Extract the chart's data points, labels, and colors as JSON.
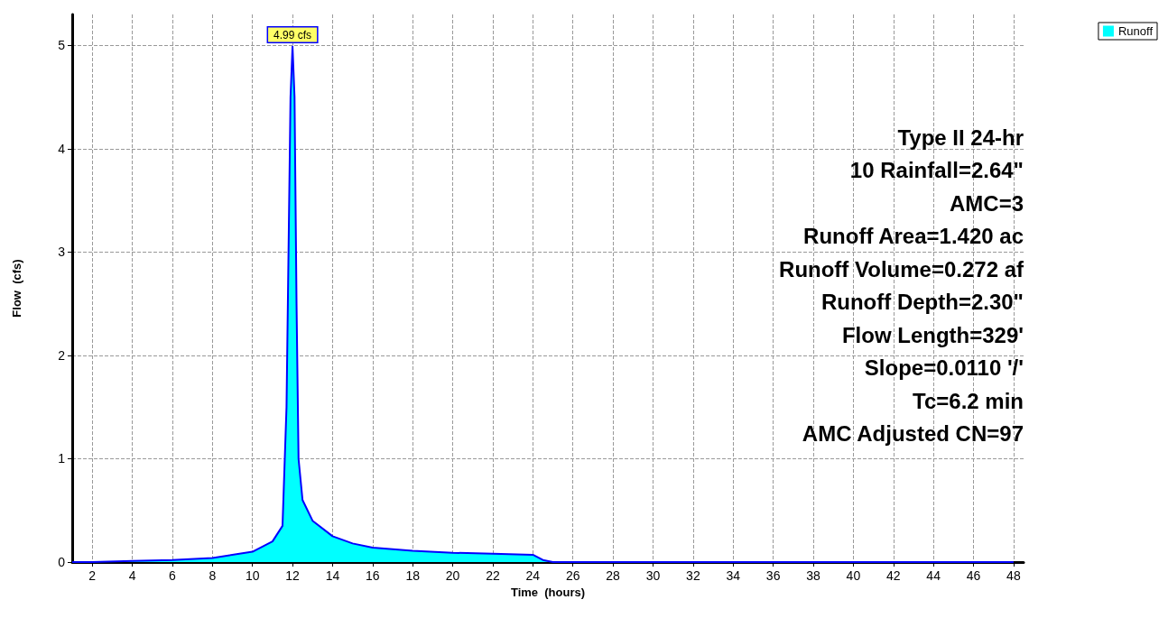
{
  "chart_data": {
    "type": "area",
    "xlabel": "Time  (hours)",
    "ylabel": "Flow  (cfs)",
    "series": [
      {
        "name": "Runoff",
        "color": "#00ffff",
        "x": [
          1,
          2,
          4,
          6,
          8,
          10,
          11,
          11.5,
          11.7,
          11.9,
          12,
          12.1,
          12.2,
          12.3,
          12.5,
          13,
          14,
          15,
          16,
          18,
          20,
          22,
          24,
          24.5,
          25,
          30,
          40,
          48
        ],
        "values": [
          0,
          0,
          0.01,
          0.02,
          0.04,
          0.1,
          0.2,
          0.35,
          1.5,
          4.5,
          4.99,
          4.5,
          2.5,
          1,
          0.6,
          0.4,
          0.25,
          0.18,
          0.14,
          0.11,
          0.09,
          0.08,
          0.07,
          0.02,
          0,
          0,
          0,
          0
        ],
        "value_labels": [
          null,
          null,
          null,
          null,
          null,
          null,
          null,
          null,
          null,
          null,
          "4.99 cfs",
          null,
          null,
          null,
          null,
          null,
          null,
          null,
          null,
          null,
          null,
          null,
          null,
          null,
          null,
          null,
          null,
          null
        ]
      }
    ],
    "xlim": [
      1,
      48.5
    ],
    "xticks": [
      2,
      4,
      6,
      8,
      10,
      12,
      14,
      16,
      18,
      20,
      22,
      24,
      26,
      28,
      30,
      32,
      34,
      36,
      38,
      40,
      42,
      44,
      46,
      48
    ],
    "ylim": [
      0,
      5.3
    ],
    "yticks": [
      0,
      1,
      2,
      3,
      4,
      5
    ],
    "grid": true,
    "legend": "top right",
    "marker": "none",
    "annotations": [
      "Type II 24-hr",
      "10 Rainfall=2.64\"",
      "AMC=3",
      "Runoff Area=1.420 ac",
      "Runoff Volume=0.272 af",
      "Runoff Depth=2.30\"",
      "Flow Length=329'",
      "Slope=0.0110 '/'",
      "Tc=6.2 min",
      "AMC Adjusted CN=97"
    ]
  }
}
